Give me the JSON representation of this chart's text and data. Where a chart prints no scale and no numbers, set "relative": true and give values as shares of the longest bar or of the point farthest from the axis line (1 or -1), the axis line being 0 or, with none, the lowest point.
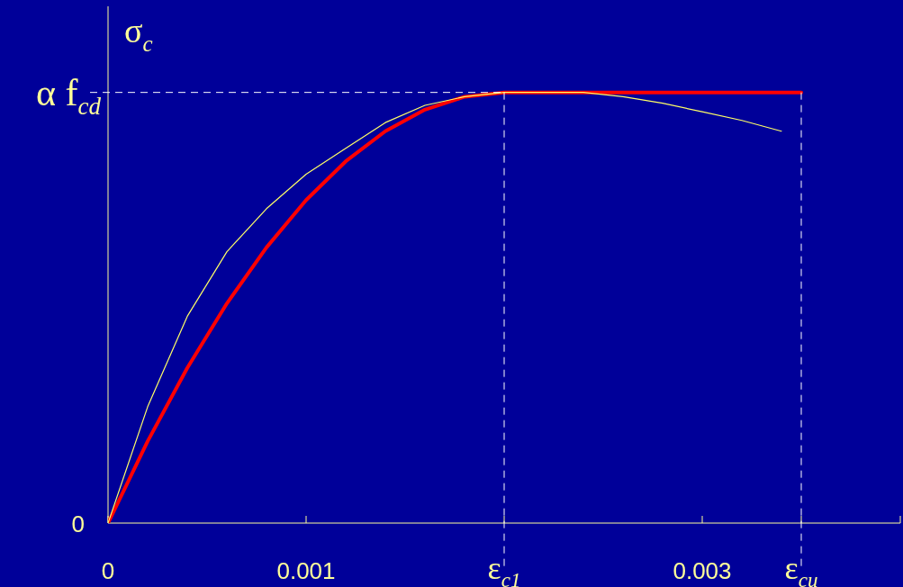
{
  "chart_data": {
    "type": "line",
    "ylabel": "σ$_{c}$",
    "relative": true,
    "x": [
      0,
      0.0002,
      0.0004,
      0.0006,
      0.0008,
      0.001,
      0.0012,
      0.0014,
      0.0016,
      0.0018,
      0.002,
      0.0022,
      0.0024,
      0.0026,
      0.0028,
      0.003,
      0.0032,
      0.0034
    ],
    "series": [
      {
        "color": "#ffff66",
        "values": [
          0,
          0.27,
          0.48,
          0.63,
          0.73,
          0.81,
          0.87,
          0.93,
          0.97,
          0.99,
          1.0,
          1.0,
          1.0,
          0.99,
          0.975,
          0.955,
          0.935,
          0.91
        ]
      },
      {
        "color": "#ff0000",
        "x": [
          0,
          0.0002,
          0.0004,
          0.0006,
          0.0008,
          0.001,
          0.0012,
          0.0014,
          0.0016,
          0.0018,
          0.002,
          0.0035
        ],
        "values": [
          0,
          0.19,
          0.36,
          0.51,
          0.64,
          0.75,
          0.84,
          0.91,
          0.96,
          0.99,
          1,
          1
        ]
      }
    ],
    "xlim": [
      0,
      0.004
    ],
    "xticks": [
      0,
      0.001,
      {
        "value": 0.002,
        "label": "ε$_{c1}$"
      },
      0.003,
      {
        "value": 0.0035,
        "label": "ε$_{cu}$"
      }
    ],
    "annotations": [
      {
        "text": "0",
        "x": 0,
        "y": 0
      }
    ],
    "ref_lines": [
      {
        "axis": "y",
        "value": 1,
        "label": "α f$_{cd}$",
        "color": "#ffffff",
        "line_style": "dashed"
      },
      {
        "axis": "x",
        "value": 0.002,
        "color": "#ffffff",
        "line_style": "dashed"
      },
      {
        "axis": "x",
        "value": 0.0035,
        "color": "#ffffff",
        "line_style": "dashed"
      }
    ],
    "legend": false,
    "marker": "none",
    "line_style": "solid"
  }
}
